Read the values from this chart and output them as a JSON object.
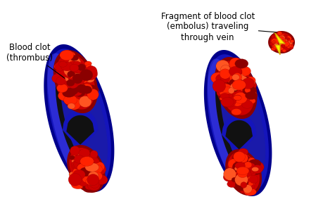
{
  "bg_color": "#ffffff",
  "vein_dark_color": "#00008b",
  "vein_mid_color": "#1515bb",
  "vein_bright_color": "#3030cc",
  "vein_highlight_color": "#4444ee",
  "vein_inner_bg": "#1a1aaa",
  "dark_channel_color": "#111111",
  "clot_base_color": "#8b0000",
  "clot_mid_color": "#cc0000",
  "clot_bright_color": "#ff2200",
  "clot_highlight_color": "#ff5522",
  "bolt_color": "#ffee00",
  "bolt_edge_color": "#cc9900",
  "text_color": "#000000",
  "font_size": 8.5,
  "label1_text": "Blood clot\n(thrombus)",
  "label2_text": "Fragment of blood clot\n(embolus) traveling\nthrough vein"
}
